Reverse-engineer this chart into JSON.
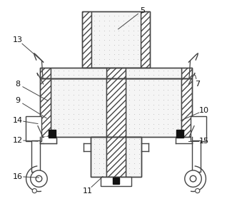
{
  "figsize": [
    3.25,
    3.1
  ],
  "dpi": 100,
  "bg_color": "#ffffff",
  "lc": "#444444",
  "lw": 1.0,
  "label_fs": 8.0,
  "label_positions": {
    "5": {
      "t": [
        0.62,
        0.955
      ],
      "p": [
        0.51,
        0.87
      ]
    },
    "7": {
      "t": [
        0.87,
        0.62
      ],
      "p": [
        0.86,
        0.66
      ]
    },
    "8": {
      "t": [
        0.055,
        0.62
      ],
      "p": [
        0.19,
        0.545
      ]
    },
    "9": {
      "t": [
        0.055,
        0.545
      ],
      "p": [
        0.185,
        0.465
      ]
    },
    "10": {
      "t": [
        0.9,
        0.5
      ],
      "p": [
        0.795,
        0.455
      ]
    },
    "11": {
      "t": [
        0.37,
        0.135
      ],
      "p": [
        0.44,
        0.2
      ]
    },
    "12": {
      "t": [
        0.055,
        0.365
      ],
      "p": [
        0.145,
        0.36
      ]
    },
    "13": {
      "t": [
        0.055,
        0.82
      ],
      "p": [
        0.17,
        0.72
      ]
    },
    "14": {
      "t": [
        0.055,
        0.455
      ],
      "p": [
        0.145,
        0.44
      ]
    },
    "15": {
      "t": [
        0.9,
        0.36
      ],
      "p": [
        0.83,
        0.36
      ]
    },
    "16": {
      "t": [
        0.055,
        0.2
      ],
      "p": [
        0.15,
        0.195
      ]
    }
  }
}
